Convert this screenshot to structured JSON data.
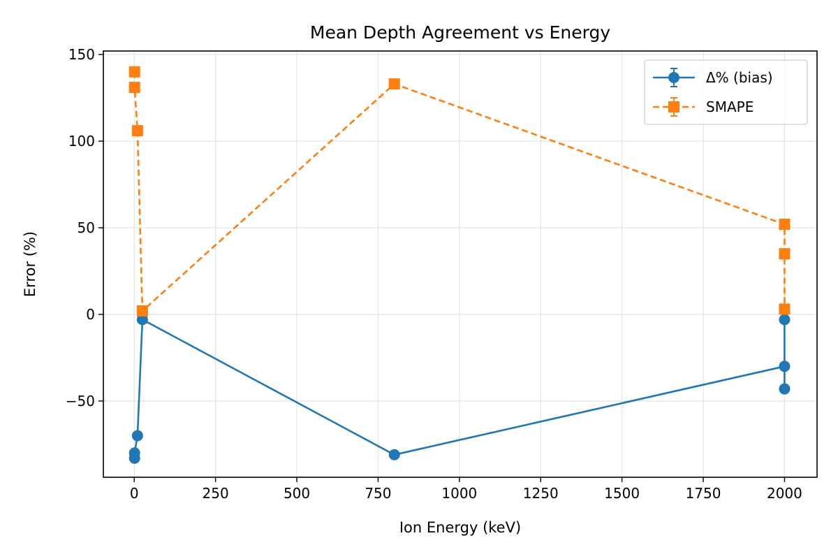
{
  "chart_data": {
    "type": "line",
    "title": "Mean Depth Agreement vs Energy",
    "xlabel": "Ion Energy (keV)",
    "ylabel": "Error (%)",
    "xlim": [
      -95,
      2100
    ],
    "ylim": [
      -94,
      152
    ],
    "xticks": [
      0,
      250,
      500,
      750,
      1000,
      1250,
      1500,
      1750,
      2000
    ],
    "yticks": [
      -50,
      0,
      50,
      100,
      150
    ],
    "xtick_labels": [
      "0",
      "250",
      "500",
      "750",
      "1000",
      "1250",
      "1500",
      "1750",
      "2000"
    ],
    "ytick_labels": [
      "−50",
      "0",
      "50",
      "100",
      "150"
    ],
    "grid": true,
    "legend_position": "top-right",
    "series": [
      {
        "name": "Δ% (bias)",
        "color": "#1f77b4",
        "line_style": "solid",
        "marker": "circle",
        "points": [
          {
            "x": 1,
            "y": -83
          },
          {
            "x": 1,
            "y": -80
          },
          {
            "x": 10,
            "y": -70
          },
          {
            "x": 25,
            "y": -3
          },
          {
            "x": 800,
            "y": -81
          },
          {
            "x": 2000,
            "y": -30
          },
          {
            "x": 2000,
            "y": -43
          },
          {
            "x": 2000,
            "y": -3
          }
        ]
      },
      {
        "name": "SMAPE",
        "color": "#ff7f0e",
        "line_style": "dashed",
        "marker": "square",
        "points": [
          {
            "x": 1,
            "y": 140
          },
          {
            "x": 1,
            "y": 131
          },
          {
            "x": 10,
            "y": 106
          },
          {
            "x": 25,
            "y": 2
          },
          {
            "x": 800,
            "y": 133
          },
          {
            "x": 2000,
            "y": 52
          },
          {
            "x": 2000,
            "y": 35
          },
          {
            "x": 2000,
            "y": 3
          }
        ]
      }
    ]
  }
}
